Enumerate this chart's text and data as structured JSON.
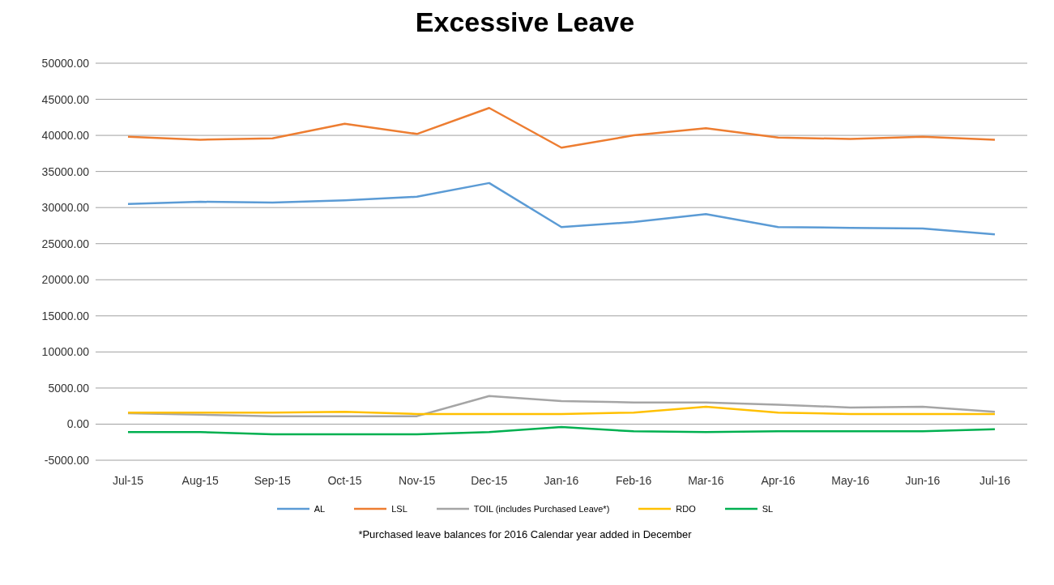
{
  "chart_data": {
    "type": "line",
    "title": "Excessive Leave",
    "categories": [
      "Jul-15",
      "Aug-15",
      "Sep-15",
      "Oct-15",
      "Nov-15",
      "Dec-15",
      "Jan-16",
      "Feb-16",
      "Mar-16",
      "Apr-16",
      "May-16",
      "Jun-16",
      "Jul-16"
    ],
    "series": [
      {
        "name": "AL",
        "color": "#5b9bd5",
        "values": [
          30500,
          30800,
          30700,
          31000,
          31500,
          33400,
          27300,
          28000,
          29100,
          27300,
          27200,
          27100,
          26300
        ]
      },
      {
        "name": "LSL",
        "color": "#ed7d31",
        "values": [
          39800,
          39400,
          39600,
          41600,
          40200,
          43800,
          38300,
          40000,
          41000,
          39700,
          39500,
          39800,
          39400
        ]
      },
      {
        "name": "TOIL (includes Purchased Leave*)",
        "color": "#a5a5a5",
        "values": [
          1500,
          1300,
          1100,
          1100,
          1100,
          3900,
          3200,
          3000,
          3000,
          2700,
          2300,
          2400,
          1700
        ]
      },
      {
        "name": "RDO",
        "color": "#ffc000",
        "values": [
          1600,
          1600,
          1600,
          1700,
          1400,
          1400,
          1400,
          1600,
          2400,
          1600,
          1400,
          1400,
          1400
        ]
      },
      {
        "name": "SL",
        "color": "#00b050",
        "values": [
          -1100,
          -1100,
          -1400,
          -1400,
          -1400,
          -1100,
          -400,
          -1000,
          -1100,
          -1000,
          -1000,
          -1000,
          -700
        ]
      }
    ],
    "ylim": [
      -5000,
      50000
    ],
    "yticks": [
      {
        "value": -5000,
        "label": "-5000.00"
      },
      {
        "value": 0,
        "label": "0.00"
      },
      {
        "value": 5000,
        "label": "5000.00"
      },
      {
        "value": 10000,
        "label": "10000.00"
      },
      {
        "value": 15000,
        "label": "15000.00"
      },
      {
        "value": 20000,
        "label": "20000.00"
      },
      {
        "value": 25000,
        "label": "25000.00"
      },
      {
        "value": 30000,
        "label": "30000.00"
      },
      {
        "value": 35000,
        "label": "35000.00"
      },
      {
        "value": 40000,
        "label": "40000.00"
      },
      {
        "value": 45000,
        "label": "45000.00"
      },
      {
        "value": 50000,
        "label": "50000.00"
      }
    ],
    "grid": "y",
    "legend": "bottom",
    "marker": "none",
    "line_style": "solid",
    "annotations": [
      "*Purchased leave balances for 2016 Calendar year added in December"
    ]
  }
}
